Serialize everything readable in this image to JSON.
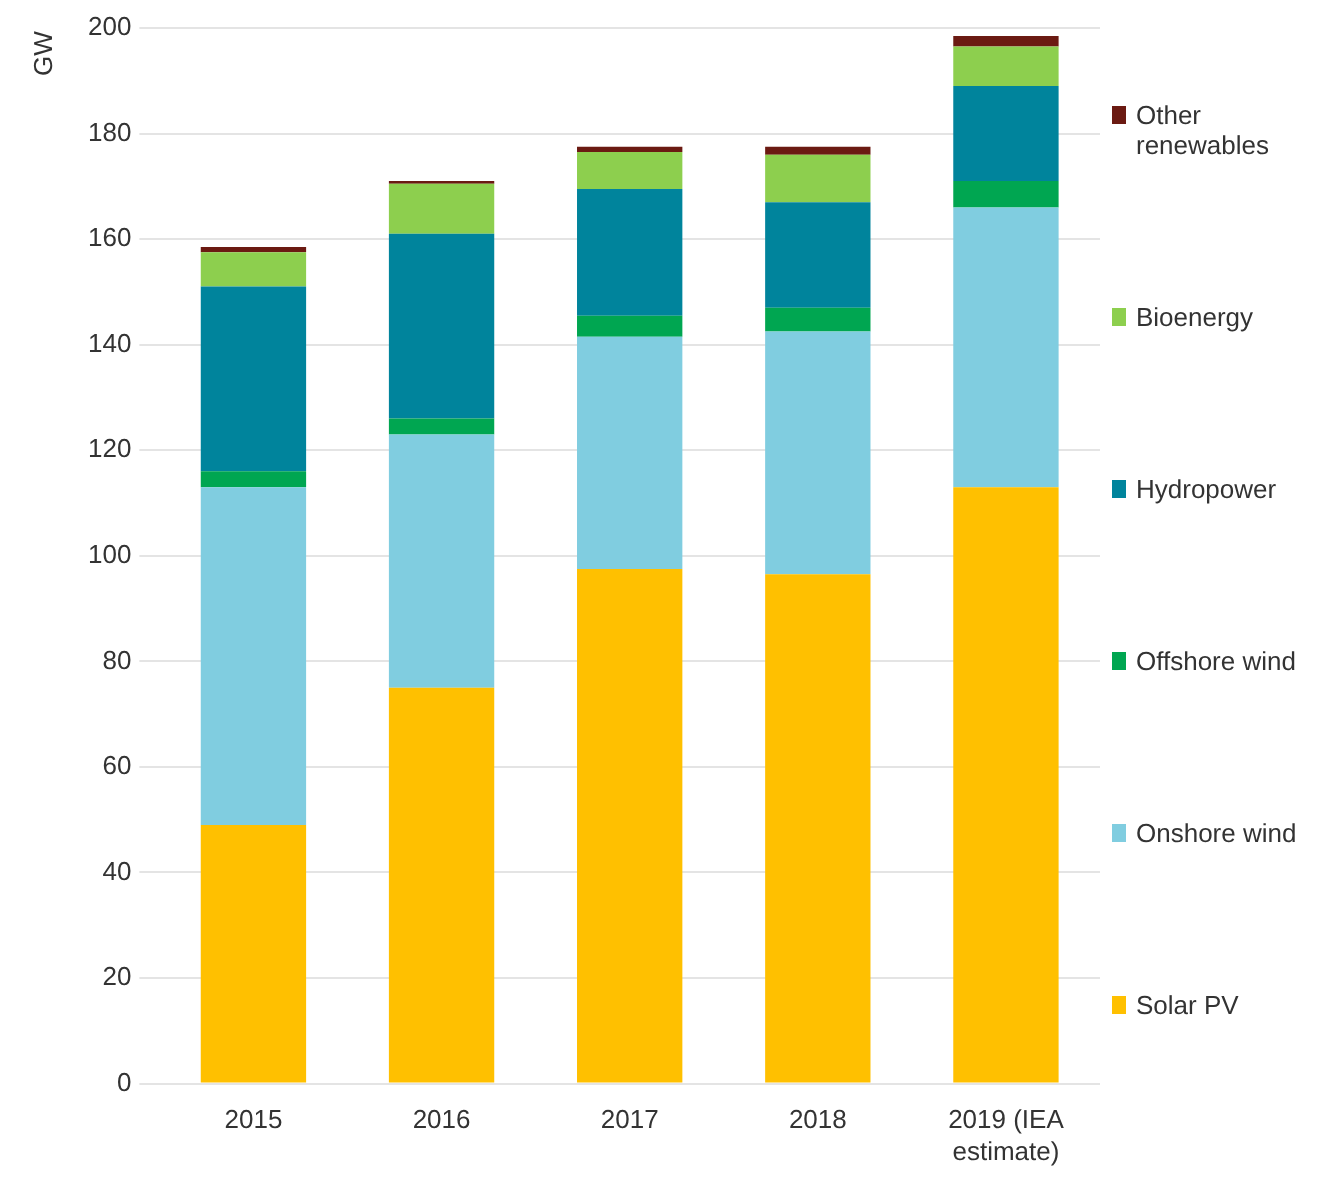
{
  "chart_data": {
    "type": "bar",
    "stacked": true,
    "ylabel": "GW",
    "categories": [
      "2015",
      "2016",
      "2017",
      "2018",
      "2019 (IEA estimate)"
    ],
    "series": [
      {
        "name": "Solar PV",
        "color": "#ffc000",
        "values": [
          49,
          75,
          97.5,
          96.5,
          113
        ]
      },
      {
        "name": "Onshore wind",
        "color": "#80cde0",
        "values": [
          64,
          48,
          44,
          46,
          53
        ]
      },
      {
        "name": "Offshore wind",
        "color": "#00a651",
        "values": [
          3,
          3,
          4,
          4.5,
          5
        ]
      },
      {
        "name": "Hydropower",
        "color": "#00849c",
        "values": [
          35,
          35,
          24,
          20,
          18
        ]
      },
      {
        "name": "Bioenergy",
        "color": "#8dcf4e",
        "values": [
          6.5,
          9.5,
          7,
          9,
          7.5
        ]
      },
      {
        "name": "Other renewables",
        "color": "#6b1a12",
        "values": [
          1,
          0.5,
          1,
          1.5,
          2
        ]
      }
    ],
    "ylim": [
      0,
      200
    ],
    "yticks": [
      0,
      20,
      40,
      60,
      80,
      100,
      120,
      140,
      160,
      180,
      200
    ],
    "grid": "y",
    "legend": "right"
  }
}
